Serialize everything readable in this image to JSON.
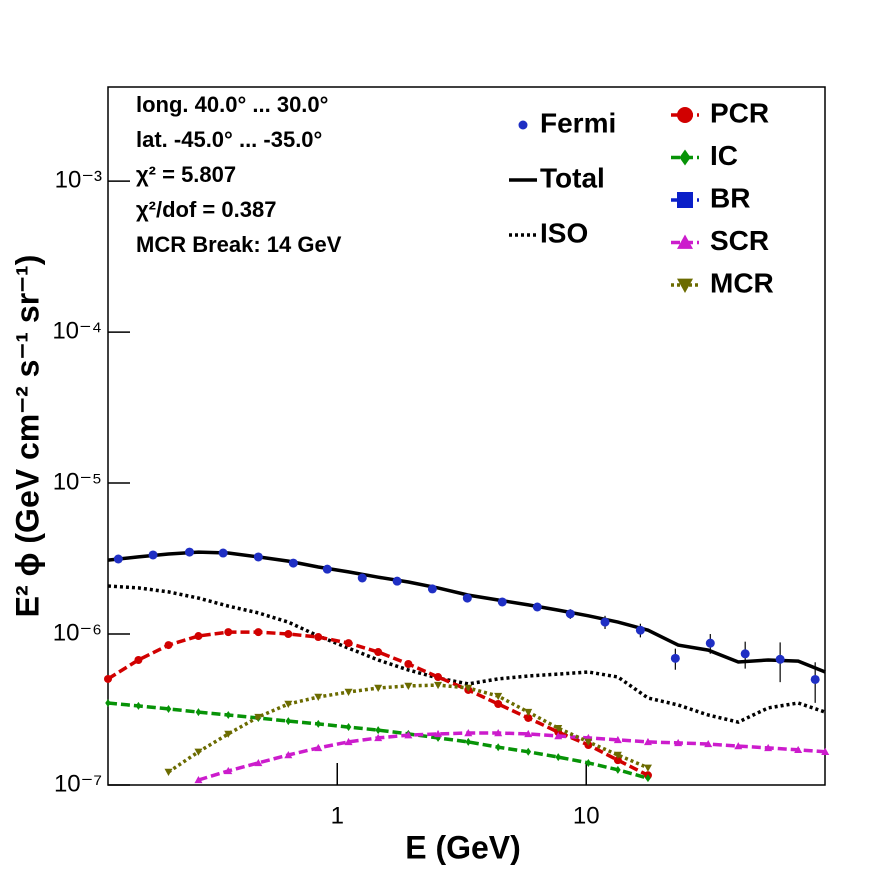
{
  "chart_data": {
    "type": "line",
    "log_x": true,
    "log_y": true,
    "xlim": [
      0.12,
      91
    ],
    "ylim": [
      1e-07,
      0.0042
    ],
    "xticks": [
      1,
      10
    ],
    "yticks": [
      {
        "value": 1e-07,
        "label": "10⁻⁷"
      },
      {
        "value": 1e-06,
        "label": "10⁻⁶"
      },
      {
        "value": 1e-05,
        "label": "10⁻⁵"
      },
      {
        "value": 0.0001,
        "label": "10⁻⁴"
      },
      {
        "value": 0.001,
        "label": "10⁻³"
      }
    ],
    "x_label": "E (GeV)",
    "y_label": "E² ϕ (GeV cm⁻² s⁻¹ sr⁻¹)",
    "annotations": [
      "long. 40.0° ... 30.0°",
      "lat. -45.0° ... -35.0°",
      "χ² = 5.807",
      "χ²/dof = 0.387",
      "MCR Break: 14 GeV"
    ],
    "points": {
      "name": "Fermi",
      "color": "#1f2fc4",
      "x": [
        0.132,
        0.182,
        0.255,
        0.348,
        0.482,
        0.666,
        0.912,
        1.26,
        1.74,
        2.41,
        3.33,
        4.6,
        6.36,
        8.63,
        11.9,
        16.5,
        22.8,
        31.5,
        43.5,
        60.1,
        83.1
      ],
      "values": [
        3.14e-06,
        3.34e-06,
        3.49e-06,
        3.44e-06,
        3.24e-06,
        2.95e-06,
        2.69e-06,
        2.35e-06,
        2.24e-06,
        1.99e-06,
        1.73e-06,
        1.63e-06,
        1.51e-06,
        1.36e-06,
        1.2e-06,
        1.06e-06,
        6.9e-07,
        8.7e-07,
        7.4e-07,
        6.8e-07,
        5e-07
      ],
      "errors": [
        6e-08,
        6e-08,
        6e-08,
        6e-08,
        6e-08,
        5e-08,
        5e-08,
        5e-08,
        5e-08,
        4e-08,
        4e-08,
        4e-08,
        5e-08,
        1e-07,
        1.2e-07,
        1.1e-07,
        1.1e-07,
        1.3e-07,
        1.5e-07,
        2e-07,
        1.5e-07
      ]
    },
    "x": [
      0.12,
      0.159,
      0.21,
      0.277,
      0.365,
      0.482,
      0.636,
      0.839,
      1.11,
      1.46,
      1.93,
      2.54,
      3.36,
      4.43,
      5.85,
      7.72,
      10.2,
      13.4,
      17.7,
      23.4,
      30.9,
      40.8,
      53.8,
      71,
      91.2
    ],
    "series": [
      {
        "name": "Total",
        "color": "#000000",
        "dash": "solid",
        "marker": null,
        "values": [
          3.09e-06,
          3.24e-06,
          3.39e-06,
          3.49e-06,
          3.44e-06,
          3.24e-06,
          3.04e-06,
          2.78e-06,
          2.58e-06,
          2.38e-06,
          2.21e-06,
          2.02e-06,
          1.81e-06,
          1.68e-06,
          1.56e-06,
          1.44e-06,
          1.32e-06,
          1.2e-06,
          1.06e-06,
          8.45e-07,
          7.83e-07,
          6.53e-07,
          6.73e-07,
          6.62e-07,
          5.6e-07
        ]
      },
      {
        "name": "ISO",
        "color": "#000000",
        "dash": "dotted",
        "marker": null,
        "values": [
          2.08e-06,
          2.02e-06,
          1.9e-06,
          1.73e-06,
          1.53e-06,
          1.38e-06,
          1.2e-06,
          9.7e-07,
          8.07e-07,
          6.73e-07,
          5.78e-07,
          5.11e-07,
          4.67e-07,
          5.04e-07,
          5.27e-07,
          5.43e-07,
          5.6e-07,
          5.19e-07,
          3.77e-07,
          3.39e-07,
          2.91e-07,
          2.61e-07,
          3.24e-07,
          3.49e-07,
          3.04e-07
        ]
      },
      {
        "name": "PCR",
        "color": "#d10000",
        "dash": "dashed",
        "marker": "circle",
        "values": [
          5.04e-07,
          6.73e-07,
          8.45e-07,
          9.7e-07,
          1.03e-06,
          1.03e-06,
          1e-06,
          9.55e-07,
          8.71e-07,
          7.6e-07,
          6.33e-07,
          5.19e-07,
          4.26e-07,
          3.44e-07,
          2.78e-07,
          2.24e-07,
          1.84e-07,
          1.46e-07,
          1.16e-07,
          null,
          null,
          null,
          null,
          null,
          null
        ]
      },
      {
        "name": "IC",
        "color": "#079307",
        "dash": "dashed",
        "marker": "diamond",
        "values": [
          3.49e-07,
          3.34e-07,
          3.19e-07,
          3.04e-07,
          2.91e-07,
          2.78e-07,
          2.65e-07,
          2.54e-07,
          2.42e-07,
          2.31e-07,
          2.18e-07,
          2.05e-07,
          1.93e-07,
          1.78e-07,
          1.66e-07,
          1.53e-07,
          1.4e-07,
          1.26e-07,
          1.11e-07,
          null,
          null,
          null,
          null,
          null,
          null
        ]
      },
      {
        "name": "BR",
        "color": "#0a1fc8",
        "dash": "dashed",
        "marker": "square",
        "values": [
          null,
          null,
          null,
          null,
          null,
          null,
          null,
          null,
          null,
          null,
          null,
          null,
          null,
          null,
          null,
          null,
          null,
          null,
          null,
          null,
          null,
          null,
          null,
          null,
          null
        ]
      },
      {
        "name": "SCR",
        "color": "#cc1ccc",
        "dash": "dashed",
        "marker": "triangle-up",
        "values": [
          null,
          null,
          null,
          1.08e-07,
          1.24e-07,
          1.4e-07,
          1.58e-07,
          1.76e-07,
          1.93e-07,
          2.05e-07,
          2.14e-07,
          2.18e-07,
          2.21e-07,
          2.21e-07,
          2.18e-07,
          2.11e-07,
          2.05e-07,
          1.99e-07,
          1.93e-07,
          1.9e-07,
          1.87e-07,
          1.81e-07,
          1.76e-07,
          1.71e-07,
          1.66e-07
        ]
      },
      {
        "name": "MCR",
        "color": "#6b6b00",
        "dash": "dotted",
        "marker": "triangle-down",
        "values": [
          null,
          null,
          1.22e-07,
          1.66e-07,
          2.18e-07,
          2.82e-07,
          3.44e-07,
          3.83e-07,
          4.13e-07,
          4.39e-07,
          4.53e-07,
          4.59e-07,
          4.39e-07,
          3.88e-07,
          3.04e-07,
          2.38e-07,
          1.93e-07,
          1.58e-07,
          1.3e-07,
          null,
          null,
          null,
          null,
          null,
          null
        ]
      }
    ]
  }
}
